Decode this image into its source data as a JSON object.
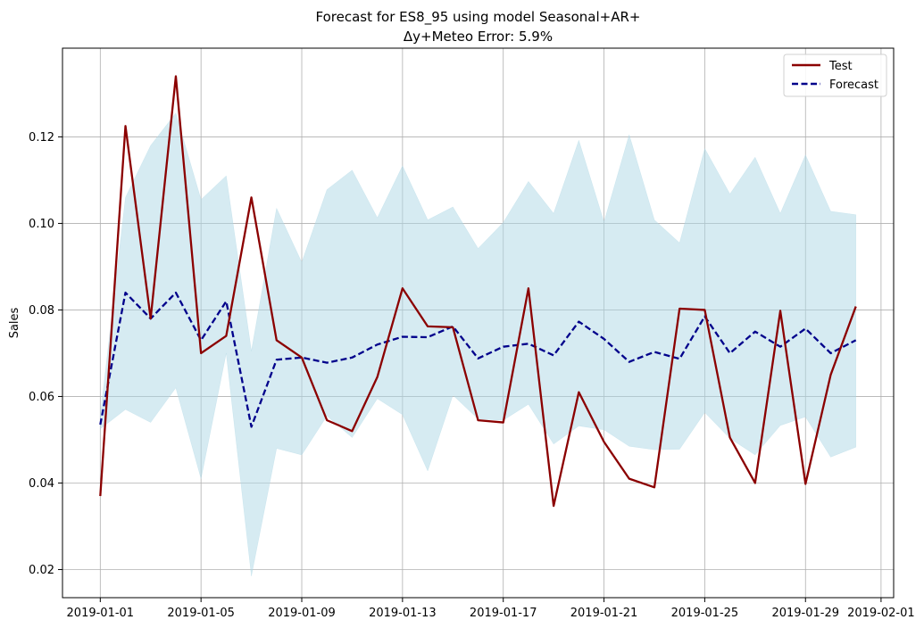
{
  "chart_data": {
    "type": "line",
    "title": "Forecast for ES8_95 using model Seasonal+AR+",
    "subtitle": "Δy+Meteo Error: 5.9%",
    "xlabel": "",
    "ylabel": "Sales",
    "x": [
      "2019-01-01",
      "2019-01-02",
      "2019-01-03",
      "2019-01-04",
      "2019-01-05",
      "2019-01-06",
      "2019-01-07",
      "2019-01-08",
      "2019-01-09",
      "2019-01-10",
      "2019-01-11",
      "2019-01-12",
      "2019-01-13",
      "2019-01-14",
      "2019-01-15",
      "2019-01-16",
      "2019-01-17",
      "2019-01-18",
      "2019-01-19",
      "2019-01-20",
      "2019-01-21",
      "2019-01-22",
      "2019-01-23",
      "2019-01-24",
      "2019-01-25",
      "2019-01-26",
      "2019-01-27",
      "2019-01-28",
      "2019-01-29",
      "2019-01-30",
      "2019-01-31"
    ],
    "xlim": [
      "2018-12-30T12:00",
      "2019-02-01T12:00"
    ],
    "ylim": [
      0.0135,
      0.1405
    ],
    "x_ticks": [
      "2019-01-01",
      "2019-01-05",
      "2019-01-09",
      "2019-01-13",
      "2019-01-17",
      "2019-01-21",
      "2019-01-25",
      "2019-01-29",
      "2019-02-01"
    ],
    "y_ticks": [
      0.02,
      0.04,
      0.06,
      0.08,
      0.1,
      0.12
    ],
    "y_tick_labels": [
      "0.02",
      "0.04",
      "0.06",
      "0.08",
      "0.10",
      "0.12"
    ],
    "grid": true,
    "legend_position": "top-right",
    "series": [
      {
        "name": "Test",
        "color": "#8b0000",
        "style": "solid",
        "values": [
          0.037,
          0.1225,
          0.078,
          0.134,
          0.07,
          0.074,
          0.106,
          0.073,
          0.069,
          0.0545,
          0.052,
          0.0645,
          0.085,
          0.0762,
          0.076,
          0.0545,
          0.054,
          0.085,
          0.0347,
          0.061,
          0.0495,
          0.041,
          0.039,
          0.0803,
          0.08,
          0.0505,
          0.04,
          0.0798,
          0.0398,
          0.065,
          0.0808
        ]
      },
      {
        "name": "Forecast",
        "color": "#00008b",
        "style": "dashed",
        "values": [
          0.0535,
          0.084,
          0.078,
          0.084,
          0.073,
          0.082,
          0.053,
          0.0685,
          0.069,
          0.0678,
          0.069,
          0.072,
          0.0738,
          0.0737,
          0.0762,
          0.0688,
          0.0715,
          0.0722,
          0.0695,
          0.0773,
          0.0733,
          0.068,
          0.0703,
          0.0687,
          0.0785,
          0.07,
          0.075,
          0.0715,
          0.0757,
          0.07,
          0.073
        ]
      }
    ],
    "band": {
      "color": "#add8e6",
      "upper": [
        0.0555,
        0.106,
        0.118,
        0.1255,
        0.1055,
        0.111,
        0.0705,
        0.1035,
        0.091,
        0.1078,
        0.1123,
        0.1013,
        0.1133,
        0.1008,
        0.1038,
        0.0942,
        0.1002,
        0.1097,
        0.1023,
        0.1192,
        0.1003,
        0.1205,
        0.1008,
        0.0955,
        0.1173,
        0.1068,
        0.1153,
        0.1023,
        0.1158,
        0.1028,
        0.102
      ],
      "lower": [
        0.0525,
        0.057,
        0.054,
        0.062,
        0.041,
        0.07,
        0.0185,
        0.048,
        0.0465,
        0.0555,
        0.0505,
        0.0595,
        0.0558,
        0.0428,
        0.0603,
        0.0548,
        0.0545,
        0.0582,
        0.049,
        0.0532,
        0.0523,
        0.0485,
        0.0477,
        0.0478,
        0.0563,
        0.0503,
        0.0465,
        0.0533,
        0.0553,
        0.046,
        0.0483
      ]
    }
  }
}
